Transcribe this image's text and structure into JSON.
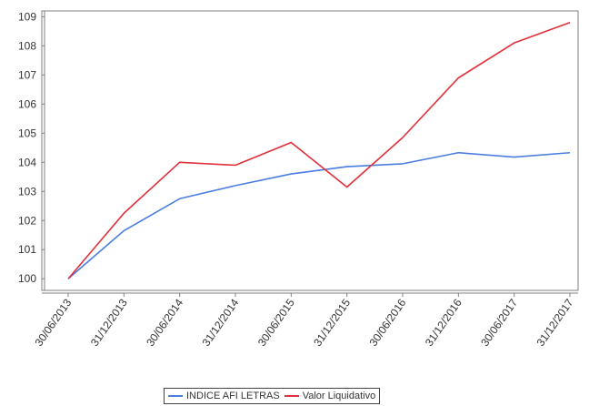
{
  "chart_data": {
    "type": "line",
    "title": "",
    "xlabel": "",
    "ylabel": "",
    "categories": [
      "30/06/2013",
      "31/12/2013",
      "30/06/2014",
      "31/12/2014",
      "30/06/2015",
      "31/12/2015",
      "30/06/2016",
      "31/12/2016",
      "30/06/2017",
      "31/12/2017"
    ],
    "ylim": [
      99.6,
      109.2
    ],
    "yticks": [
      100,
      101,
      102,
      103,
      104,
      105,
      106,
      107,
      108,
      109
    ],
    "grid": false,
    "legend_position": "bottom",
    "series": [
      {
        "name": "INDICE AFI LETRAS",
        "color": "#4a7de0",
        "values": [
          100.0,
          101.65,
          102.75,
          103.2,
          103.6,
          103.85,
          103.95,
          104.33,
          104.18,
          104.33
        ]
      },
      {
        "name": "Valor Liquidativo",
        "color": "#e0303a",
        "values": [
          100.0,
          102.25,
          104.0,
          103.9,
          104.68,
          103.15,
          104.85,
          106.9,
          108.1,
          108.8
        ]
      }
    ]
  }
}
